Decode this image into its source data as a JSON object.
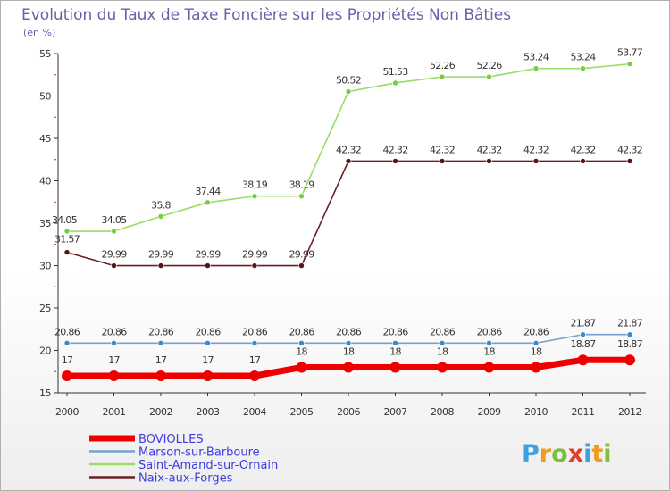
{
  "chart_data": {
    "type": "line",
    "title": "Evolution du Taux de Taxe Foncière sur les Propriétés Non Bâties",
    "subtitle": "(en %)",
    "xlabel": "",
    "ylabel": "",
    "categories": [
      "2000",
      "2001",
      "2002",
      "2003",
      "2004",
      "2005",
      "2006",
      "2007",
      "2008",
      "2009",
      "2010",
      "2011",
      "2012"
    ],
    "y_ticks": [
      "15",
      "20",
      "25",
      "30",
      "35",
      "40",
      "45",
      "50",
      "55"
    ],
    "ylim": [
      15,
      55
    ],
    "grid": false,
    "legend_position": "bottom-left",
    "series": [
      {
        "name": "Saint-Amand-sur-Ornain",
        "color": "#98dd66",
        "marker": "#77cc44",
        "values": [
          34.05,
          34.05,
          35.8,
          37.44,
          38.19,
          38.19,
          50.52,
          51.53,
          52.26,
          52.26,
          53.24,
          53.24,
          53.77
        ],
        "labels": [
          "34.05",
          "34.05",
          "35.8",
          "37.44",
          "38.19",
          "38.19",
          "50.52",
          "51.53",
          "52.26",
          "52.26",
          "53.24",
          "53.24",
          "53.77"
        ]
      },
      {
        "name": "Naix-aux-Forges",
        "color": "#6b1f24",
        "marker": "#5a1216",
        "values": [
          31.57,
          29.99,
          29.99,
          29.99,
          29.99,
          29.99,
          42.32,
          42.32,
          42.32,
          42.32,
          42.32,
          42.32,
          42.32
        ],
        "labels": [
          "31.57",
          "29.99",
          "29.99",
          "29.99",
          "29.99",
          "29.99",
          "42.32",
          "42.32",
          "42.32",
          "42.32",
          "42.32",
          "42.32",
          "42.32"
        ]
      },
      {
        "name": "Marson-sur-Barboure",
        "color": "#78a3cf",
        "marker": "#3c88cc",
        "values": [
          20.86,
          20.86,
          20.86,
          20.86,
          20.86,
          20.86,
          20.86,
          20.86,
          20.86,
          20.86,
          20.86,
          21.87,
          21.87
        ],
        "labels": [
          "20.86",
          "20.86",
          "20.86",
          "20.86",
          "20.86",
          "20.86",
          "20.86",
          "20.86",
          "20.86",
          "20.86",
          "20.86",
          "21.87",
          "21.87"
        ]
      },
      {
        "name": "BOVIOLLES",
        "color": "#ee0000",
        "marker": "#ee0000",
        "values": [
          17,
          17,
          17,
          17,
          17,
          18,
          18,
          18,
          18,
          18,
          18,
          18.87,
          18.87
        ],
        "labels": [
          "17",
          "17",
          "17",
          "17",
          "17",
          "18",
          "18",
          "18",
          "18",
          "18",
          "18",
          "18.87",
          "18.87"
        ]
      }
    ],
    "legend_order": [
      "BOVIOLLES",
      "Marson-sur-Barboure",
      "Saint-Amand-sur-Ornain",
      "Naix-aux-Forges"
    ]
  },
  "branding": {
    "letters": [
      "P",
      "r",
      "o",
      "x",
      "i",
      "t",
      "i"
    ],
    "colors": [
      "#3fa0dd",
      "#f29a1e",
      "#7bbf3a",
      "#e23d2b",
      "#3fa0dd",
      "#f29a1e",
      "#7bbf3a"
    ]
  }
}
